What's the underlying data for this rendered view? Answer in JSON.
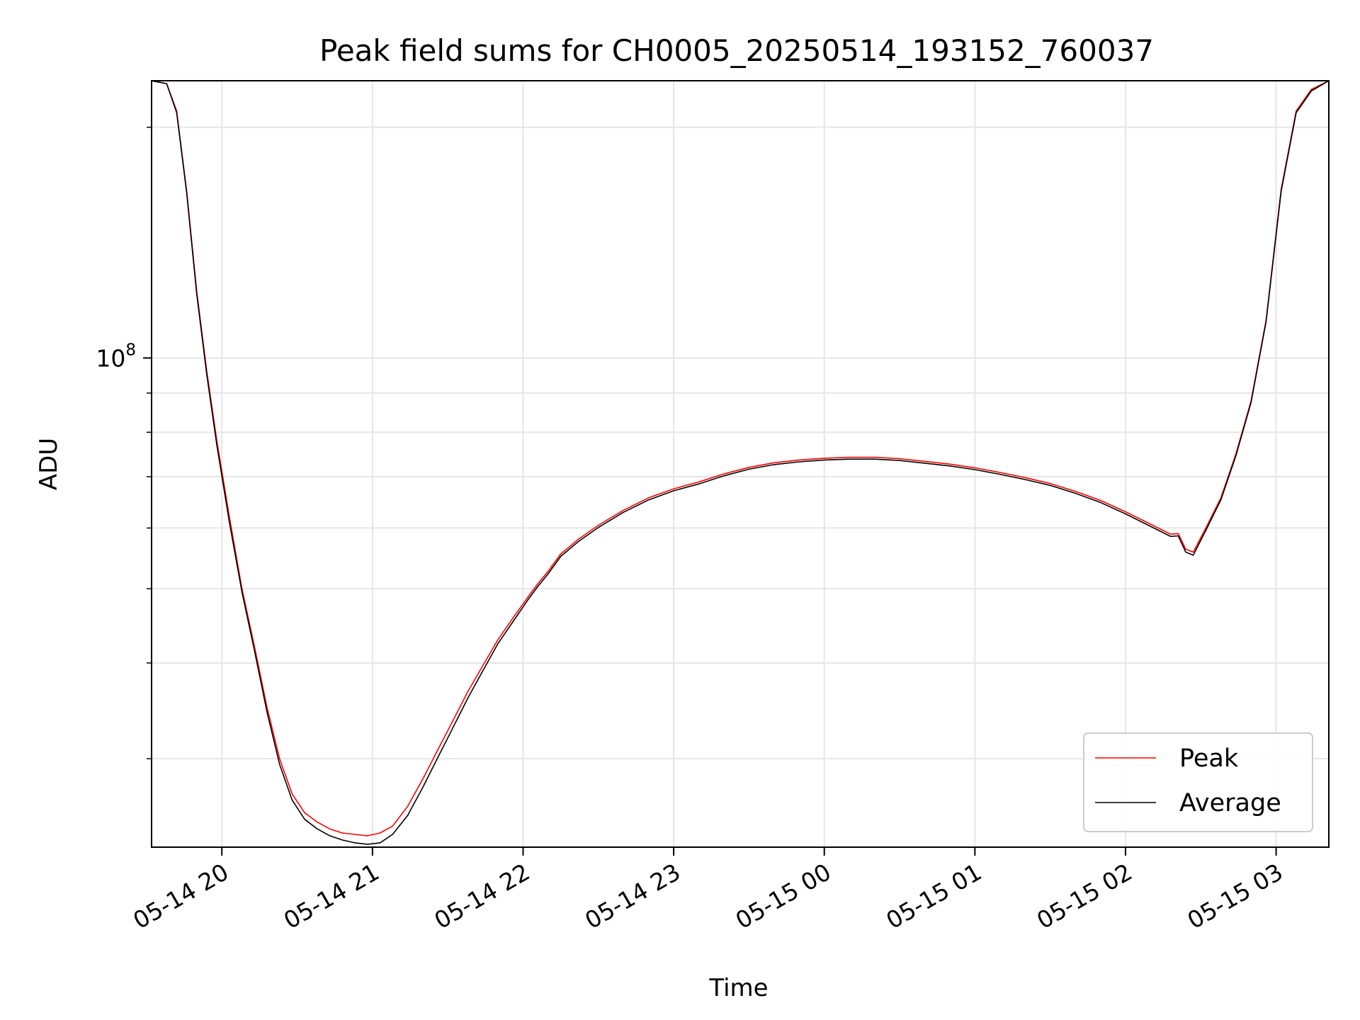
{
  "chart_data": {
    "type": "line",
    "title": "Peak field sums for CH0005_20250514_193152_760037",
    "xlabel": "Time",
    "ylabel": "ADU",
    "x_scale": "time",
    "y_scale": "log",
    "xlim": [
      "05-14 19:32",
      "05-15 03:21"
    ],
    "ylim": [
      23000000,
      230000000
    ],
    "x_ticks": [
      "05-14 20",
      "05-14 21",
      "05-14 22",
      "05-14 23",
      "05-15 00",
      "05-15 01",
      "05-15 02",
      "05-15 03"
    ],
    "y_major_ticks": [
      {
        "value": 100000000,
        "label_base": "10",
        "label_exp": "8"
      }
    ],
    "grid": true,
    "legend": "lower-right",
    "colors": {
      "Peak": "#ff0000",
      "Average": "#000000"
    },
    "series": [
      {
        "name": "Peak",
        "x": [
          "05-14 19:32",
          "05-14 19:38",
          "05-14 19:42",
          "05-14 19:46",
          "05-14 19:50",
          "05-14 19:54",
          "05-14 19:58",
          "05-14 20:03",
          "05-14 20:08",
          "05-14 20:13",
          "05-14 20:18",
          "05-14 20:23",
          "05-14 20:28",
          "05-14 20:33",
          "05-14 20:38",
          "05-14 20:43",
          "05-14 20:48",
          "05-14 20:53",
          "05-14 20:58",
          "05-14 21:03",
          "05-14 21:08",
          "05-14 21:14",
          "05-14 21:20",
          "05-14 21:26",
          "05-14 21:32",
          "05-14 21:38",
          "05-14 21:44",
          "05-14 21:50",
          "05-14 21:56",
          "05-14 22:02",
          "05-14 22:06",
          "05-14 22:10",
          "05-14 22:15",
          "05-14 22:22",
          "05-14 22:30",
          "05-14 22:40",
          "05-14 22:50",
          "05-14 23:00",
          "05-14 23:10",
          "05-14 23:20",
          "05-14 23:30",
          "05-14 23:40",
          "05-14 23:50",
          "05-15 00:00",
          "05-15 00:10",
          "05-15 00:20",
          "05-15 00:30",
          "05-15 00:40",
          "05-15 00:50",
          "05-15 01:00",
          "05-15 01:10",
          "05-15 01:20",
          "05-15 01:30",
          "05-15 01:40",
          "05-15 01:50",
          "05-15 02:00",
          "05-15 02:10",
          "05-15 02:18",
          "05-15 02:21",
          "05-15 02:24",
          "05-15 02:27",
          "05-15 02:32",
          "05-15 02:38",
          "05-15 02:44",
          "05-15 02:50",
          "05-15 02:56",
          "05-15 03:02",
          "05-15 03:08",
          "05-15 03:14",
          "05-15 03:21"
        ],
        "y": [
          230000000,
          228000000,
          210000000,
          165000000,
          122000000,
          96000000,
          78000000,
          62000000,
          50000000,
          42000000,
          35000000,
          30000000,
          27000000,
          25500000,
          24800000,
          24300000,
          24000000,
          23900000,
          23800000,
          24000000,
          24500000,
          26000000,
          28200000,
          30800000,
          33600000,
          36700000,
          39700000,
          42900000,
          45800000,
          48800000,
          50800000,
          52700000,
          55500000,
          58000000,
          60500000,
          63300000,
          65700000,
          67500000,
          68900000,
          70600000,
          72000000,
          73000000,
          73600000,
          74000000,
          74200000,
          74200000,
          73900000,
          73300000,
          72700000,
          71900000,
          70900000,
          69800000,
          68600000,
          67000000,
          65200000,
          63000000,
          60700000,
          58900000,
          59000000,
          56300000,
          55800000,
          60000000,
          65700000,
          75000000,
          87800000,
          112000000,
          166000000,
          210000000,
          224000000,
          230000000
        ]
      },
      {
        "name": "Average",
        "x": [
          "05-14 19:32",
          "05-14 19:38",
          "05-14 19:42",
          "05-14 19:46",
          "05-14 19:50",
          "05-14 19:54",
          "05-14 19:58",
          "05-14 20:03",
          "05-14 20:08",
          "05-14 20:13",
          "05-14 20:18",
          "05-14 20:23",
          "05-14 20:28",
          "05-14 20:33",
          "05-14 20:38",
          "05-14 20:43",
          "05-14 20:48",
          "05-14 20:53",
          "05-14 20:58",
          "05-14 21:03",
          "05-14 21:08",
          "05-14 21:14",
          "05-14 21:20",
          "05-14 21:26",
          "05-14 21:32",
          "05-14 21:38",
          "05-14 21:44",
          "05-14 21:50",
          "05-14 21:56",
          "05-14 22:02",
          "05-14 22:06",
          "05-14 22:10",
          "05-14 22:15",
          "05-14 22:22",
          "05-14 22:30",
          "05-14 22:40",
          "05-14 22:50",
          "05-14 23:00",
          "05-14 23:10",
          "05-14 23:20",
          "05-14 23:30",
          "05-14 23:40",
          "05-14 23:50",
          "05-15 00:00",
          "05-15 00:10",
          "05-15 00:20",
          "05-15 00:30",
          "05-15 00:40",
          "05-15 00:50",
          "05-15 01:00",
          "05-15 01:10",
          "05-15 01:20",
          "05-15 01:30",
          "05-15 01:40",
          "05-15 01:50",
          "05-15 02:00",
          "05-15 02:10",
          "05-15 02:18",
          "05-15 02:21",
          "05-15 02:24",
          "05-15 02:27",
          "05-15 02:32",
          "05-15 02:38",
          "05-15 02:44",
          "05-15 02:50",
          "05-15 02:56",
          "05-15 03:02",
          "05-15 03:08",
          "05-15 03:14",
          "05-15 03:21"
        ],
        "y": [
          230000000,
          228000000,
          209000000,
          164000000,
          121000000,
          95000000,
          77000000,
          61000000,
          49500000,
          41500000,
          34500000,
          29500000,
          26500000,
          25000000,
          24300000,
          23800000,
          23500000,
          23300000,
          23200000,
          23300000,
          23900000,
          25300000,
          27500000,
          30100000,
          32900000,
          36000000,
          39100000,
          42400000,
          45300000,
          48400000,
          50400000,
          52300000,
          55100000,
          57600000,
          60100000,
          62900000,
          65300000,
          67100000,
          68500000,
          70200000,
          71600000,
          72600000,
          73200000,
          73600000,
          73800000,
          73800000,
          73500000,
          72900000,
          72300000,
          71500000,
          70500000,
          69400000,
          68200000,
          66600000,
          64800000,
          62600000,
          60300000,
          58500000,
          58600000,
          55800000,
          55300000,
          59600000,
          65300000,
          74600000,
          87400000,
          111500000,
          165000000,
          209000000,
          223000000,
          230000000
        ]
      }
    ]
  }
}
